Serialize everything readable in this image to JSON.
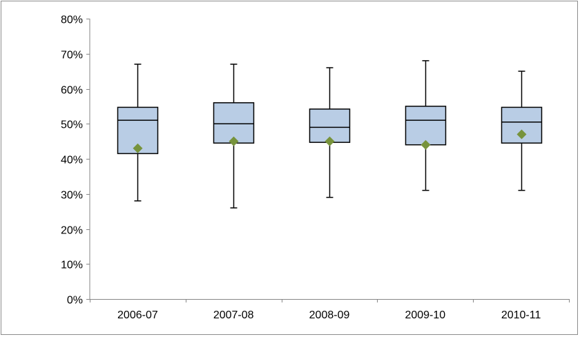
{
  "chart_data": {
    "type": "boxplot",
    "title": "",
    "xlabel": "",
    "ylabel": "",
    "categories": [
      "2006-07",
      "2007-08",
      "2008-09",
      "2009-10",
      "2010-11"
    ],
    "ylim": [
      0,
      0.8
    ],
    "y_ticks": [
      0,
      0.1,
      0.2,
      0.3,
      0.4,
      0.5,
      0.6,
      0.7,
      0.8
    ],
    "y_tick_labels": [
      "0%",
      "10%",
      "20%",
      "30%",
      "40%",
      "50%",
      "60%",
      "70%",
      "80%"
    ],
    "y_format": "percent",
    "grid": false,
    "legend": "none",
    "boxes": [
      {
        "category": "2006-07",
        "min": 0.28,
        "q1": 0.415,
        "median": 0.51,
        "q3": 0.547,
        "max": 0.67,
        "mean": 0.43
      },
      {
        "category": "2007-08",
        "min": 0.26,
        "q1": 0.445,
        "median": 0.5,
        "q3": 0.56,
        "max": 0.67,
        "mean": 0.45
      },
      {
        "category": "2008-09",
        "min": 0.29,
        "q1": 0.447,
        "median": 0.49,
        "q3": 0.542,
        "max": 0.66,
        "mean": 0.45
      },
      {
        "category": "2009-10",
        "min": 0.31,
        "q1": 0.44,
        "median": 0.51,
        "q3": 0.55,
        "max": 0.68,
        "mean": 0.44
      },
      {
        "category": "2010-11",
        "min": 0.31,
        "q1": 0.445,
        "median": 0.505,
        "q3": 0.547,
        "max": 0.65,
        "mean": 0.47
      }
    ],
    "colors": {
      "box_fill": "#b9cde5",
      "box_stroke": "#000000",
      "mean_marker": "#77933c",
      "axis": "#868686"
    }
  }
}
